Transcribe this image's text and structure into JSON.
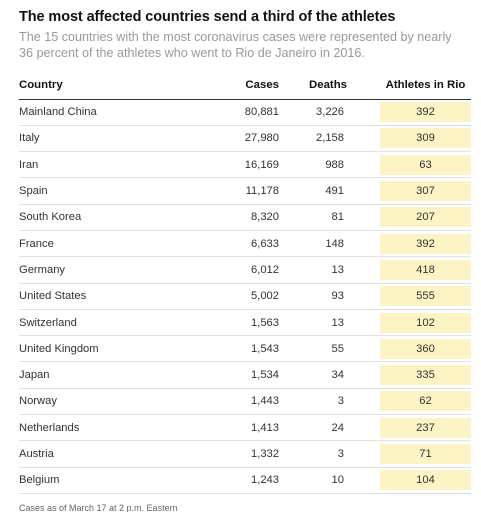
{
  "title": "The most affected countries send a third of the athletes",
  "subtitle": "The 15 countries with the most coronavirus cases were represented by nearly 36 percent of the athletes who went to Rio de Janeiro in 2016.",
  "table": {
    "headers": [
      "Country",
      "Cases",
      "Deaths",
      "Athletes in Rio"
    ],
    "rows": [
      [
        "Mainland China",
        "80,881",
        "3,226",
        "392"
      ],
      [
        "Italy",
        "27,980",
        "2,158",
        "309"
      ],
      [
        "Iran",
        "16,169",
        "988",
        "63"
      ],
      [
        "Spain",
        "11,178",
        "491",
        "307"
      ],
      [
        "South Korea",
        "8,320",
        "81",
        "207"
      ],
      [
        "France",
        "6,633",
        "148",
        "392"
      ],
      [
        "Germany",
        "6,012",
        "13",
        "418"
      ],
      [
        "United States",
        "5,002",
        "93",
        "555"
      ],
      [
        "Switzerland",
        "1,563",
        "13",
        "102"
      ],
      [
        "United Kingdom",
        "1,543",
        "55",
        "360"
      ],
      [
        "Japan",
        "1,534",
        "34",
        "335"
      ],
      [
        "Norway",
        "1,443",
        "3",
        "62"
      ],
      [
        "Netherlands",
        "1,413",
        "24",
        "237"
      ],
      [
        "Austria",
        "1,332",
        "3",
        "71"
      ],
      [
        "Belgium",
        "1,243",
        "10",
        "104"
      ]
    ]
  },
  "note": "Cases as of March 17 at 2 p.m. Eastern",
  "colors": {
    "highlight": "#fcf4c4",
    "subtitle": "#999999",
    "rule": "#e2e2e2"
  }
}
